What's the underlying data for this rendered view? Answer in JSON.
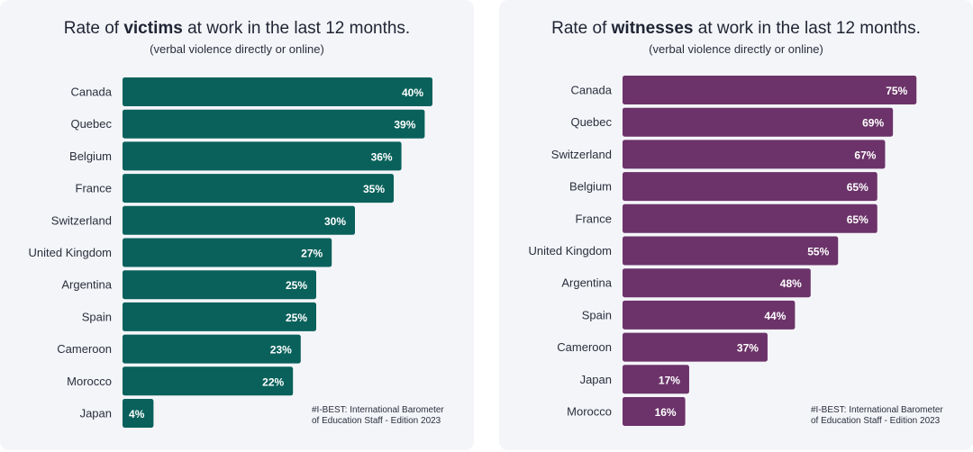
{
  "chart_data": [
    {
      "type": "bar",
      "orientation": "horizontal",
      "title_parts": [
        "Rate of ",
        "victims",
        " at work in the last 12 months."
      ],
      "subtitle": "(verbal violence directly or online)",
      "categories": [
        "Canada",
        "Quebec",
        "Belgium",
        "France",
        "Switzerland",
        "United Kingdom",
        "Argentina",
        "Spain",
        "Cameroon",
        "Morocco",
        "Japan"
      ],
      "values": [
        40,
        39,
        36,
        35,
        30,
        27,
        25,
        25,
        23,
        22,
        4
      ],
      "value_labels": [
        "40%",
        "39%",
        "36%",
        "35%",
        "30%",
        "27%",
        "25%",
        "25%",
        "23%",
        "22%",
        "4%"
      ],
      "unit": "%",
      "color": "#0a615b",
      "source_lines": [
        "#I-BEST: International Barometer",
        "of Education Staff - Edition 2023"
      ]
    },
    {
      "type": "bar",
      "orientation": "horizontal",
      "title_parts": [
        "Rate of ",
        "witnesses",
        " at work in the last 12 months."
      ],
      "subtitle": "(verbal violence directly or online)",
      "categories": [
        "Canada",
        "Quebec",
        "Switzerland",
        "Belgium",
        "France",
        "United Kingdom",
        "Argentina",
        "Spain",
        "Cameroon",
        "Japan",
        "Morocco"
      ],
      "values": [
        75,
        69,
        67,
        65,
        65,
        55,
        48,
        44,
        37,
        17,
        16
      ],
      "value_labels": [
        "75%",
        "69%",
        "67%",
        "65%",
        "65%",
        "55%",
        "48%",
        "44%",
        "37%",
        "17%",
        "16%"
      ],
      "unit": "%",
      "color": "#6b3369",
      "source_lines": [
        "#I-BEST: International Barometer",
        "of Education Staff - Edition 2023"
      ]
    }
  ]
}
